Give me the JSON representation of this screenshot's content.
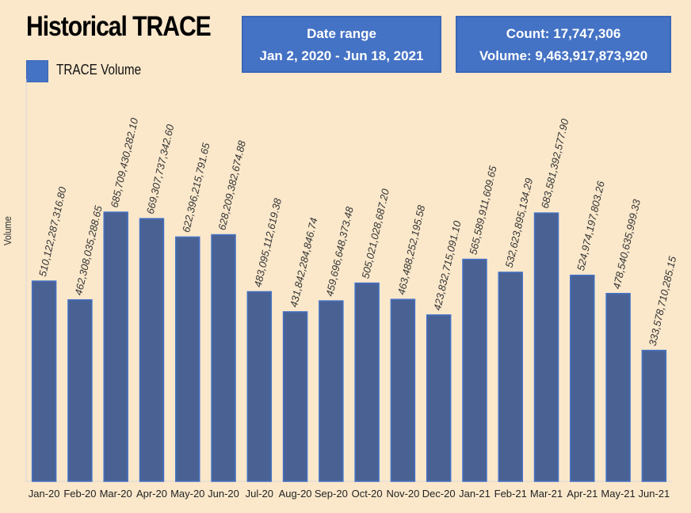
{
  "title": "Historical TRACE",
  "date_box": {
    "label": "Date range",
    "value": "Jan 2, 2020 - Jun 18, 2021"
  },
  "stats_box": {
    "count_line": "Count:  17,747,306",
    "volume_line": "Volume:  9,463,917,873,920"
  },
  "colors": {
    "background": "#fbe8cb",
    "bar_fill": "#4a6194",
    "bar_stroke": "#4472c4",
    "box_fill": "#4472c4"
  },
  "chart_data": {
    "type": "bar",
    "ylabel": "Volume",
    "ylim": [
      0,
      750000000000
    ],
    "grid": false,
    "legend": {
      "placement": "top-left",
      "entries": [
        "TRACE  Volume"
      ]
    },
    "categories": [
      "Jan-20",
      "Feb-20",
      "Mar-20",
      "Apr-20",
      "May-20",
      "Jun-20",
      "Jul-20",
      "Aug-20",
      "Sep-20",
      "Oct-20",
      "Nov-20",
      "Dec-20",
      "Jan-21",
      "Feb-21",
      "Mar-21",
      "Apr-21",
      "May-21",
      "Jun-21"
    ],
    "series": [
      {
        "name": "TRACE  Volume",
        "values": [
          510122287316.8,
          462308035288.65,
          685709430282.1,
          669307737342.6,
          622396215791.65,
          628209382674.88,
          483095112619.38,
          431842284846.74,
          459696648373.48,
          505021028687.2,
          463488252195.58,
          423832715091.1,
          565589911609.65,
          532623895134.29,
          683581392577.9,
          524974197803.26,
          478540635999.33,
          333578710285.15
        ],
        "labels": [
          "510,122,287,316.80",
          "462,308,035,288.65",
          "685,709,430,282.10",
          "669,307,737,342.60",
          "622,396,215,791.65",
          "628,209,382,674.88",
          "483,095,112,619.38",
          "431,842,284,846.74",
          "459,696,648,373.48",
          "505,021,028,687.20",
          "463,488,252,195.58",
          "423,832,715,091.10",
          "565,589,911,609.65",
          "532,623,895,134.29",
          "683,581,392,577.90",
          "524,974,197,803.26",
          "478,540,635,999.33",
          "333,578,710,285.15"
        ]
      }
    ]
  }
}
